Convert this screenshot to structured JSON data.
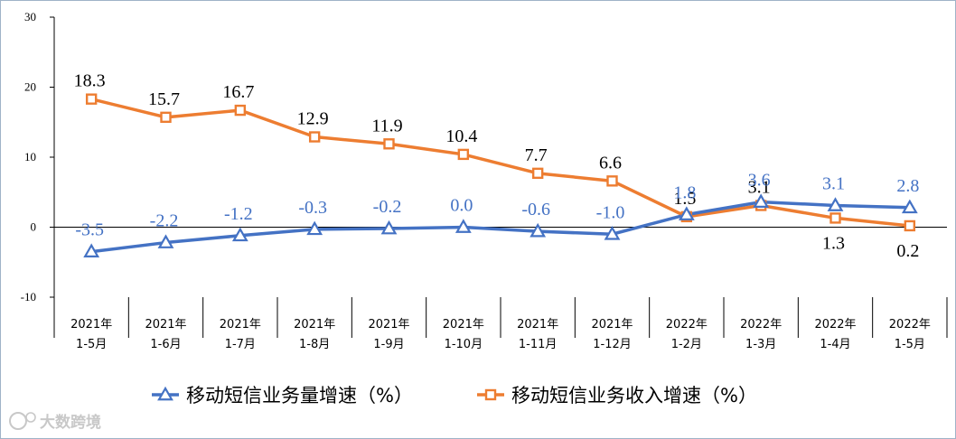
{
  "chart_data": {
    "type": "line",
    "categories": [
      [
        "2021年",
        "1-5月"
      ],
      [
        "2021年",
        "1-6月"
      ],
      [
        "2021年",
        "1-7月"
      ],
      [
        "2021年",
        "1-8月"
      ],
      [
        "2021年",
        "1-9月"
      ],
      [
        "2021年",
        "1-10月"
      ],
      [
        "2021年",
        "1-11月"
      ],
      [
        "2021年",
        "1-12月"
      ],
      [
        "2022年",
        "1-2月"
      ],
      [
        "2022年",
        "1-3月"
      ],
      [
        "2022年",
        "1-4月"
      ],
      [
        "2022年",
        "1-5月"
      ]
    ],
    "series": [
      {
        "name": "移动短信业务量增速（%）",
        "color": "#4472c4",
        "marker": "triangle",
        "values": [
          -3.5,
          -2.2,
          -1.2,
          -0.3,
          -0.2,
          0.0,
          -0.6,
          -1.0,
          1.8,
          3.6,
          3.1,
          2.8
        ],
        "labels": [
          "-3.5",
          "-2.2",
          "-1.2",
          "-0.3",
          "-0.2",
          "0.0",
          "-0.6",
          "-1.0",
          "1.8",
          "3.6",
          "3.1",
          "2.8"
        ]
      },
      {
        "name": "移动短信业务收入增速（%）",
        "color": "#ed7d31",
        "marker": "square",
        "values": [
          18.3,
          15.7,
          16.7,
          12.9,
          11.9,
          10.4,
          7.7,
          6.6,
          1.5,
          3.1,
          1.3,
          0.2
        ],
        "labels": [
          "18.3",
          "15.7",
          "16.7",
          "12.9",
          "11.9",
          "10.4",
          "7.7",
          "6.6",
          "1.5",
          "3.1",
          "1.3",
          "0.2"
        ]
      }
    ],
    "yticks": [
      30,
      20,
      10,
      0,
      -10
    ],
    "ylim": [
      -10,
      30
    ],
    "title": "",
    "xlabel": "",
    "ylabel": "",
    "grid": false,
    "legend_position": "bottom"
  },
  "watermark": "大数跨境"
}
